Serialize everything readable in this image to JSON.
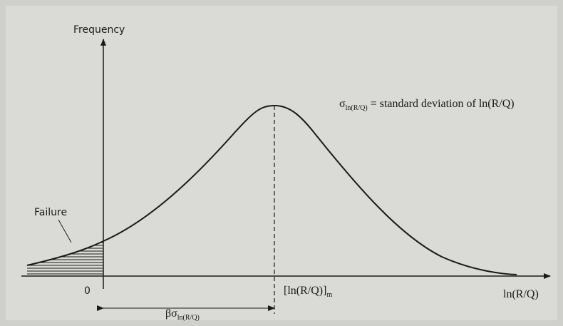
{
  "axes": {
    "y_label": "Frequency",
    "x_label": "ln(R/Q)",
    "origin": "0"
  },
  "failure_label": "Failure",
  "mean_label": {
    "text": "[ln(R/Q)]",
    "subscript": "m"
  },
  "sigma_label": {
    "symbol": "σ",
    "subscript": "ln(R/Q)",
    "text": " = standard deviation of ln(R/Q)"
  },
  "beta_label": {
    "symbol": "βσ",
    "subscript": "ln(R/Q)"
  }
}
